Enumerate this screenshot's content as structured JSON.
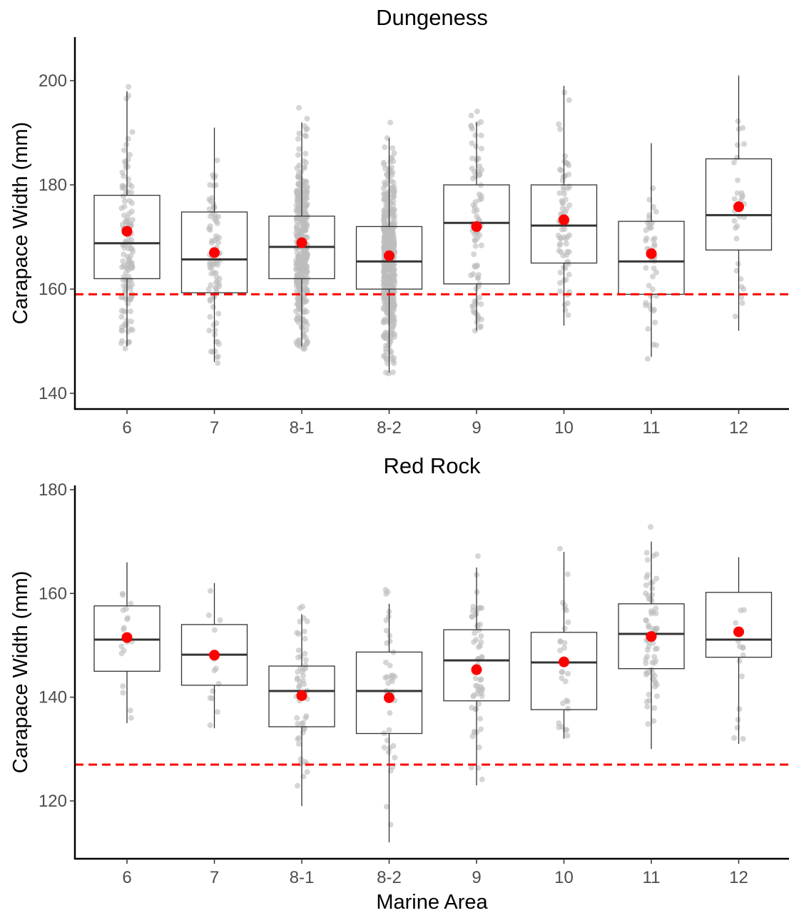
{
  "chart_data": [
    {
      "type": "boxplot",
      "title": "Dungeness",
      "xlabel": "",
      "ylabel": "Carapace Width (mm)",
      "ylim": [
        137,
        207
      ],
      "yticks": [
        140,
        160,
        180,
        200
      ],
      "categories": [
        "6",
        "7",
        "8-1",
        "8-2",
        "9",
        "10",
        "11",
        "12"
      ],
      "boxes": [
        {
          "category": "6",
          "lower_whisker": 149,
          "q1": 162,
          "median": 168.8,
          "q3": 178,
          "upper_whisker": 198,
          "mean": 171.1
        },
        {
          "category": "7",
          "lower_whisker": 146,
          "q1": 159.3,
          "median": 165.7,
          "q3": 174.8,
          "upper_whisker": 191,
          "mean": 167
        },
        {
          "category": "8-1",
          "lower_whisker": 149,
          "q1": 162,
          "median": 168.1,
          "q3": 174,
          "upper_whisker": 192,
          "mean": 168.9
        },
        {
          "category": "8-2",
          "lower_whisker": 144,
          "q1": 160,
          "median": 165.3,
          "q3": 172,
          "upper_whisker": 189,
          "mean": 166.4
        },
        {
          "category": "9",
          "lower_whisker": 152,
          "q1": 161,
          "median": 172.7,
          "q3": 180,
          "upper_whisker": 192,
          "mean": 172
        },
        {
          "category": "10",
          "lower_whisker": 153,
          "q1": 165,
          "median": 172.2,
          "q3": 180,
          "upper_whisker": 199,
          "mean": 173.3
        },
        {
          "category": "11",
          "lower_whisker": 147,
          "q1": 159,
          "median": 165.3,
          "q3": 173,
          "upper_whisker": 188,
          "mean": 166.8
        },
        {
          "category": "12",
          "lower_whisker": 152,
          "q1": 167.5,
          "median": 174.2,
          "q3": 185,
          "upper_whisker": 201,
          "mean": 175.8
        }
      ],
      "point_counts": [
        140,
        90,
        400,
        500,
        85,
        75,
        45,
        30
      ],
      "reference_line": 159,
      "colors": {
        "points": "#bdbdbd",
        "mean": "#ff0000",
        "box": "#333333",
        "reference": "#ff0000"
      }
    },
    {
      "type": "boxplot",
      "title": "Red Rock",
      "xlabel": "Marine Area",
      "ylabel": "Carapace Width (mm)",
      "ylim": [
        110.5,
        180
      ],
      "yticks": [
        120,
        140,
        160,
        180
      ],
      "categories": [
        "6",
        "7",
        "8-1",
        "8-2",
        "9",
        "10",
        "11",
        "12"
      ],
      "boxes": [
        {
          "category": "6",
          "lower_whisker": 135,
          "q1": 145,
          "median": 151.1,
          "q3": 157.6,
          "upper_whisker": 166,
          "mean": 151.5
        },
        {
          "category": "7",
          "lower_whisker": 134,
          "q1": 142.3,
          "median": 148.2,
          "q3": 154,
          "upper_whisker": 162,
          "mean": 148.1
        },
        {
          "category": "8-1",
          "lower_whisker": 119,
          "q1": 134.3,
          "median": 141.2,
          "q3": 146,
          "upper_whisker": 156,
          "mean": 140.3
        },
        {
          "category": "8-2",
          "lower_whisker": 112,
          "q1": 133,
          "median": 141.2,
          "q3": 148.7,
          "upper_whisker": 158,
          "mean": 139.9
        },
        {
          "category": "9",
          "lower_whisker": 123,
          "q1": 139.3,
          "median": 147.1,
          "q3": 153,
          "upper_whisker": 165,
          "mean": 145.3
        },
        {
          "category": "10",
          "lower_whisker": 132,
          "q1": 137.6,
          "median": 146.7,
          "q3": 152.5,
          "upper_whisker": 168,
          "mean": 146.8
        },
        {
          "category": "11",
          "lower_whisker": 130,
          "q1": 145.5,
          "median": 152.2,
          "q3": 158,
          "upper_whisker": 170,
          "mean": 151.7
        },
        {
          "category": "12",
          "lower_whisker": 131,
          "q1": 147.7,
          "median": 151.1,
          "q3": 160.2,
          "upper_whisker": 167,
          "mean": 152.6
        }
      ],
      "point_counts": [
        18,
        14,
        55,
        40,
        60,
        28,
        70,
        15
      ],
      "reference_line": 127,
      "colors": {
        "points": "#bdbdbd",
        "mean": "#ff0000",
        "box": "#333333",
        "reference": "#ff0000"
      }
    }
  ]
}
